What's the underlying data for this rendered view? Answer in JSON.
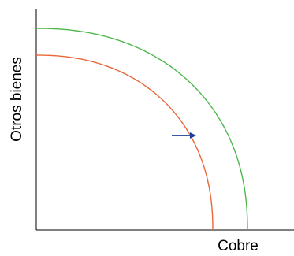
{
  "chart_data": {
    "type": "line",
    "title": "",
    "xlabel": "Cobre",
    "ylabel": "Otros bienes",
    "xlim": [
      0,
      330
    ],
    "ylim": [
      0,
      257
    ],
    "grid": false,
    "legend": "none",
    "ticks": false,
    "series": [
      {
        "color": "#e8683a",
        "description": "inner production possibilities frontier",
        "x_intercept": 224,
        "y_intercept": 222,
        "curve_exponent": 2.2
      },
      {
        "color": "#4cb84c",
        "description": "outer production possibilities frontier",
        "x_intercept": 268,
        "y_intercept": 256,
        "curve_exponent": 2.2
      }
    ],
    "annotations": [
      {
        "type": "arrow",
        "color": "#1f3f99",
        "direction": "right",
        "meaning": "outward shift of the frontier",
        "from": [
          172,
          120
        ],
        "to": [
          202,
          120
        ]
      }
    ]
  }
}
